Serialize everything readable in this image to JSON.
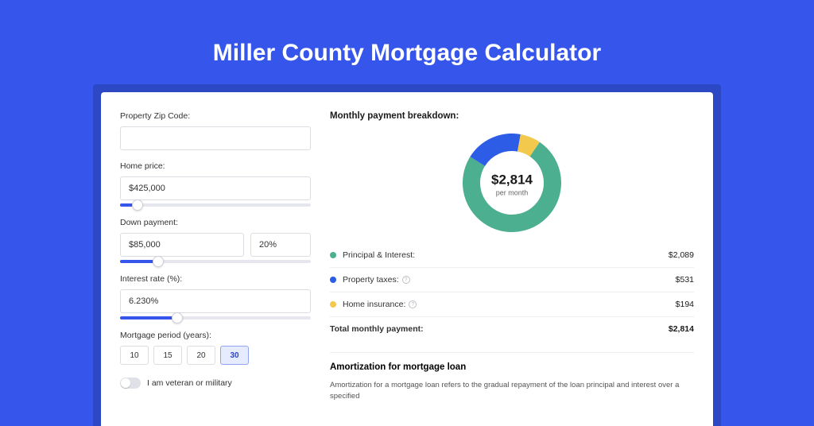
{
  "page_title": "Miller County Mortgage Calculator",
  "colors": {
    "page_bg": "#3555eb",
    "card_wrap_bg": "#2d48c4",
    "card_bg": "#ffffff",
    "accent": "#3555eb"
  },
  "form": {
    "zip_label": "Property Zip Code:",
    "zip_value": "",
    "home_price_label": "Home price:",
    "home_price_value": "$425,000",
    "home_price_slider_pct": 9,
    "down_payment_label": "Down payment:",
    "down_payment_value": "$85,000",
    "down_payment_pct": "20%",
    "down_payment_slider_pct": 20,
    "interest_label": "Interest rate (%):",
    "interest_value": "6.230%",
    "interest_slider_pct": 30,
    "period_label": "Mortgage period (years):",
    "periods": [
      {
        "label": "10",
        "active": false
      },
      {
        "label": "15",
        "active": false
      },
      {
        "label": "20",
        "active": false
      },
      {
        "label": "30",
        "active": true
      }
    ],
    "veteran_label": "I am veteran or military"
  },
  "breakdown": {
    "title": "Monthly payment breakdown:",
    "donut": {
      "center_value": "$2,814",
      "center_sub": "per month",
      "size": 124,
      "stroke": 22,
      "slices": [
        {
          "key": "pi",
          "color": "#4caf8f",
          "value": 2089
        },
        {
          "key": "tax",
          "color": "#2d5de7",
          "value": 531
        },
        {
          "key": "ins",
          "color": "#f2c94c",
          "value": 194
        }
      ]
    },
    "rows": [
      {
        "dot": "#4caf8f",
        "label": "Principal & Interest:",
        "help": false,
        "value": "$2,089"
      },
      {
        "dot": "#2d5de7",
        "label": "Property taxes:",
        "help": true,
        "value": "$531"
      },
      {
        "dot": "#f2c94c",
        "label": "Home insurance:",
        "help": true,
        "value": "$194"
      }
    ],
    "total_label": "Total monthly payment:",
    "total_value": "$2,814"
  },
  "amort": {
    "title": "Amortization for mortgage loan",
    "text": "Amortization for a mortgage loan refers to the gradual repayment of the loan principal and interest over a specified"
  }
}
